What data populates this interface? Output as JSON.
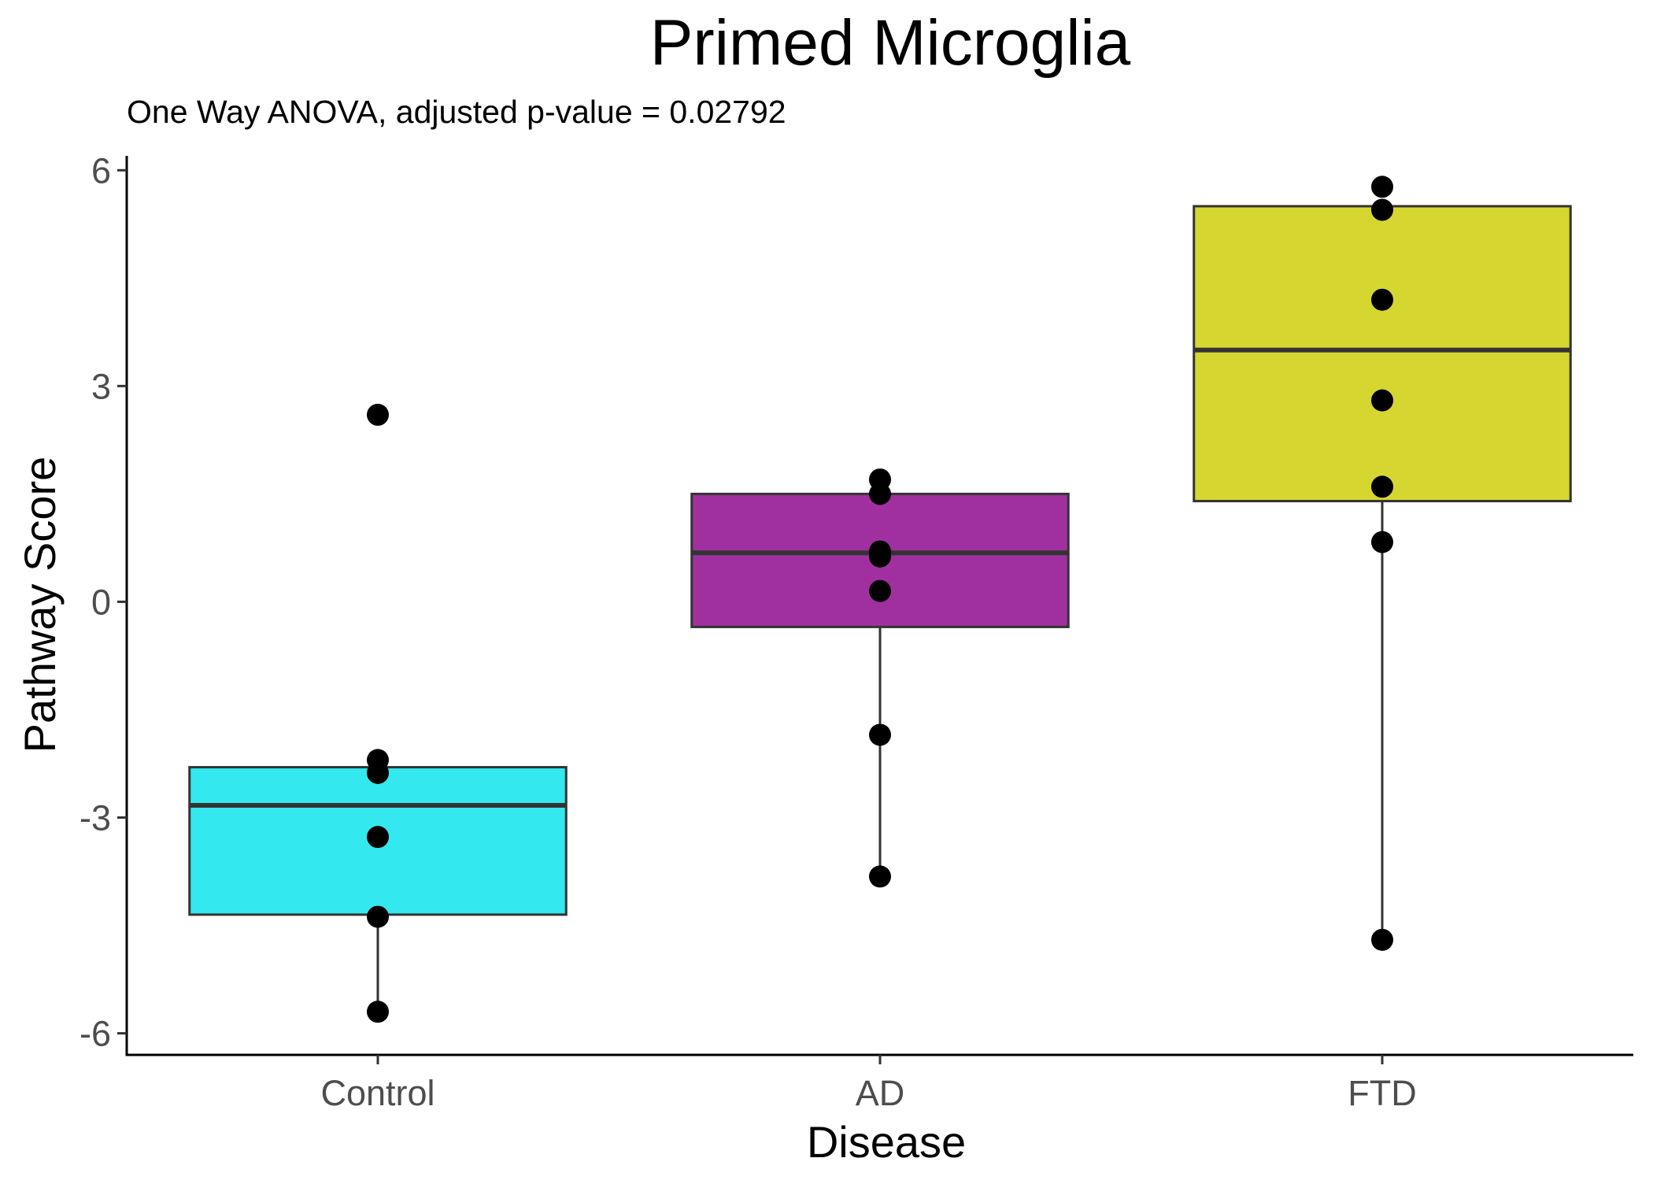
{
  "chart_data": {
    "type": "box",
    "title": "Primed Microglia",
    "subtitle": "One Way ANOVA, adjusted p-value = 0.02792",
    "xlabel": "Disease",
    "ylabel": "Pathway Score",
    "ylim": [
      -6.3,
      6.2
    ],
    "yticks": [
      6,
      3,
      0,
      -3,
      -6
    ],
    "ytick_labels": [
      "6",
      "3",
      "0",
      "-3",
      "-6"
    ],
    "categories": [
      "Control",
      "AD",
      "FTD"
    ],
    "grid": false,
    "legend": "none",
    "groups": [
      {
        "category": "Control",
        "color": "#33e8ee",
        "box": {
          "lower_whisker": -5.7,
          "q1": -4.35,
          "median": -2.83,
          "q3": -2.3,
          "upper_whisker": -2.3
        },
        "points": [
          2.6,
          -2.2,
          -2.38,
          -3.27,
          -4.38,
          -5.7
        ]
      },
      {
        "category": "AD",
        "color": "#a0309f",
        "box": {
          "lower_whisker": -3.82,
          "q1": -0.35,
          "median": 0.68,
          "q3": 1.5,
          "upper_whisker": 1.5
        },
        "points": [
          1.7,
          1.5,
          0.7,
          0.63,
          0.15,
          -1.85,
          -3.82
        ]
      },
      {
        "category": "FTD",
        "color": "#d6d631",
        "box": {
          "lower_whisker": -4.7,
          "q1": 1.4,
          "median": 3.5,
          "q3": 5.5,
          "upper_whisker": 5.5
        },
        "points": [
          5.77,
          5.45,
          4.2,
          2.8,
          1.6,
          0.83,
          -4.7
        ]
      }
    ]
  }
}
